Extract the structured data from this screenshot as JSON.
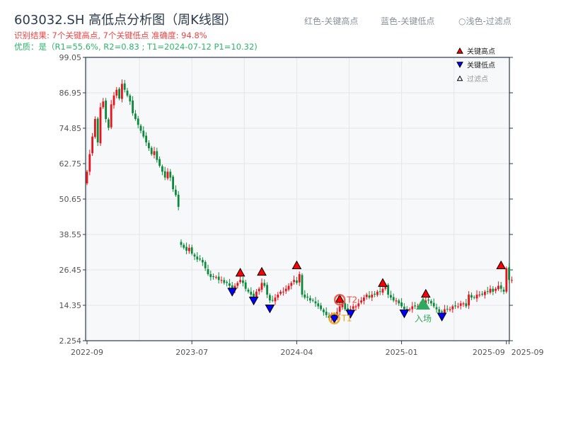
{
  "title": "603032.SH 高低点分析图（周K线图）",
  "subtitle_result": "识别结果: 7个关键高点, 7个关键低点  准确度: 94.8%",
  "subtitle_quality": "优质：是（R1=55.6%, R2=0.83 ; T1=2024-07-12 P1=10.32)",
  "header_legend": [
    "红色-关键高点",
    "蓝色-关键低点",
    "○浅色-过滤点"
  ],
  "colors": {
    "up": "#e8141c",
    "down": "#0b8a3a",
    "high_marker": "#ff0000",
    "low_marker": "#0000ff",
    "entry": "#2eaa5e",
    "t1": "#f39c12",
    "t2": "#e74c3c",
    "plot_bg": "#f7f8fa"
  },
  "chart_data": {
    "type": "candlestick",
    "frequency": "weekly",
    "closes": [
      60,
      66,
      72,
      78,
      70,
      82,
      84,
      78,
      75,
      83,
      86,
      88,
      85,
      90,
      88,
      86,
      84,
      80,
      78,
      76,
      74,
      72,
      70,
      68,
      66,
      67,
      64,
      62,
      60,
      58,
      60,
      58,
      54,
      52,
      48,
      35,
      34,
      33,
      34,
      32,
      31,
      30,
      30,
      29,
      27,
      25,
      24,
      24,
      24,
      23,
      23,
      22,
      22,
      21,
      20,
      21,
      22,
      23,
      22,
      20,
      19,
      18,
      17,
      19,
      20,
      22,
      21,
      18,
      16,
      16,
      17,
      18,
      19,
      19,
      20,
      21,
      22,
      23,
      22,
      25,
      18,
      17,
      17,
      16,
      16,
      15,
      14,
      13,
      12,
      11,
      10,
      11,
      10,
      12,
      14,
      15,
      13,
      12,
      13,
      14,
      14,
      15,
      16,
      17,
      18,
      17,
      18,
      18,
      19,
      19,
      20,
      21,
      18,
      17,
      16,
      16,
      15,
      14,
      13,
      13,
      13,
      14,
      14,
      14,
      15,
      15,
      16,
      16,
      15,
      14,
      13,
      12,
      12,
      13,
      13,
      13,
      14,
      14,
      14,
      15,
      15,
      14,
      18,
      17,
      17,
      18,
      18,
      18,
      19,
      19,
      20,
      19,
      20,
      21,
      20,
      19,
      27,
      23,
      23
    ],
    "ylim": [
      2.254,
      99.05
    ],
    "yticks": [
      "2.254",
      "14.35",
      "26.45",
      "38.55",
      "50.65",
      "62.75",
      "74.85",
      "86.95",
      "99.05"
    ],
    "xticks": [
      {
        "label": "2022-09",
        "bar": 0
      },
      {
        "label": "2023-07",
        "bar": 39
      },
      {
        "label": "2024-04",
        "bar": 78
      },
      {
        "label": "2025-01",
        "bar": 117
      },
      {
        "label": "2025-09",
        "bar": 156
      },
      {
        "label": "2025-09",
        "bar": 157
      }
    ],
    "key_highs": [
      {
        "bar": 57,
        "price": 24.5
      },
      {
        "bar": 65,
        "price": 24.8
      },
      {
        "bar": 78,
        "price": 27
      },
      {
        "bar": 94,
        "price": 15.5
      },
      {
        "bar": 110,
        "price": 21
      },
      {
        "bar": 126,
        "price": 17.3
      },
      {
        "bar": 154,
        "price": 27
      }
    ],
    "key_lows": [
      {
        "bar": 54,
        "price": 19.5
      },
      {
        "bar": 62,
        "price": 16.5
      },
      {
        "bar": 68,
        "price": 13.8
      },
      {
        "bar": 92,
        "price": 10.3
      },
      {
        "bar": 98,
        "price": 12
      },
      {
        "bar": 118,
        "price": 12.1
      },
      {
        "bar": 132,
        "price": 11
      }
    ],
    "entry": {
      "bar": 125,
      "price": 14.6,
      "label": "入场"
    },
    "t1": {
      "bar": 92,
      "price": 10.32,
      "label": "T1"
    },
    "t2": {
      "bar": 94,
      "price": 15.5,
      "label": "T2"
    },
    "legend": {
      "placement": "top-right",
      "items": [
        "关键高点",
        "关键低点",
        "过滤点"
      ]
    },
    "grid": true
  }
}
